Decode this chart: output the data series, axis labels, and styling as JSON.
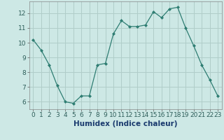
{
  "x": [
    0,
    1,
    2,
    3,
    4,
    5,
    6,
    7,
    8,
    9,
    10,
    11,
    12,
    13,
    14,
    15,
    16,
    17,
    18,
    19,
    20,
    21,
    22,
    23
  ],
  "y": [
    10.2,
    9.5,
    8.5,
    7.1,
    6.0,
    5.9,
    6.4,
    6.4,
    8.5,
    8.6,
    10.6,
    11.5,
    11.1,
    11.1,
    11.2,
    12.1,
    11.7,
    12.3,
    12.4,
    11.0,
    9.8,
    8.5,
    7.5,
    6.4
  ],
  "line_color": "#2e7d72",
  "marker": "D",
  "marker_size": 2,
  "bg_color": "#cde8e5",
  "grid_color": "#b0cdc9",
  "xlabel": "Humidex (Indice chaleur)",
  "xlim": [
    -0.5,
    23.5
  ],
  "ylim": [
    5.5,
    12.8
  ],
  "yticks": [
    6,
    7,
    8,
    9,
    10,
    11,
    12
  ],
  "xticks": [
    0,
    1,
    2,
    3,
    4,
    5,
    6,
    7,
    8,
    9,
    10,
    11,
    12,
    13,
    14,
    15,
    16,
    17,
    18,
    19,
    20,
    21,
    22,
    23
  ],
  "xlabel_fontsize": 7.5,
  "tick_fontsize": 6.5
}
